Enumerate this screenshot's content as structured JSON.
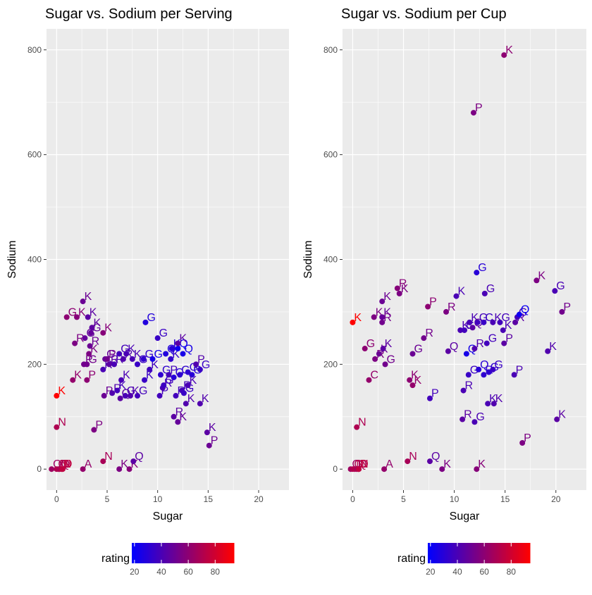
{
  "legend": {
    "title": "rating",
    "ticks": [
      20,
      40,
      60,
      80
    ],
    "low_color": "#0000FF",
    "high_color": "#FF0000",
    "range": [
      18,
      94
    ]
  },
  "chart_data": [
    {
      "type": "scatter",
      "title": "Sugar vs. Sodium per Serving",
      "xlabel": "Sugar",
      "ylabel": "Sodium",
      "xlim": [
        -1,
        23
      ],
      "ylim": [
        -40,
        840
      ],
      "xticks": [
        0,
        5,
        10,
        15,
        20
      ],
      "yticks": [
        0,
        200,
        400,
        600,
        800
      ],
      "grid": true,
      "color_by": "rating",
      "points": [
        {
          "x": 0,
          "y": 140,
          "label": "K",
          "rating": 94
        },
        {
          "x": 0,
          "y": 80,
          "label": "N",
          "rating": 70
        },
        {
          "x": -0.5,
          "y": 0,
          "label": "Q",
          "rating": 65
        },
        {
          "x": 0,
          "y": 0,
          "label": "Q",
          "rating": 70
        },
        {
          "x": 0.2,
          "y": 0,
          "label": "N",
          "rating": 72
        },
        {
          "x": 0.3,
          "y": 0,
          "label": "Q",
          "rating": 68
        },
        {
          "x": 0.5,
          "y": 0,
          "label": "N",
          "rating": 74
        },
        {
          "x": 0.6,
          "y": 0,
          "label": "D",
          "rating": 75
        },
        {
          "x": 1,
          "y": 290,
          "label": "G",
          "rating": 60
        },
        {
          "x": 1.6,
          "y": 170,
          "label": "K",
          "rating": 62
        },
        {
          "x": 2,
          "y": 290,
          "label": "K",
          "rating": 58
        },
        {
          "x": 1.8,
          "y": 240,
          "label": "R",
          "rating": 55
        },
        {
          "x": 2.6,
          "y": 320,
          "label": "K",
          "rating": 50
        },
        {
          "x": 2.7,
          "y": 200,
          "label": "P",
          "rating": 52
        },
        {
          "x": 2.8,
          "y": 250,
          "label": "G",
          "rating": 48
        },
        {
          "x": 3,
          "y": 170,
          "label": "P",
          "rating": 60
        },
        {
          "x": 3,
          "y": 200,
          "label": "G",
          "rating": 52
        },
        {
          "x": 3.1,
          "y": 290,
          "label": "K",
          "rating": 45
        },
        {
          "x": 3.2,
          "y": 220,
          "label": "K",
          "rating": 55
        },
        {
          "x": 3.3,
          "y": 235,
          "label": "R",
          "rating": 50
        },
        {
          "x": 3.4,
          "y": 260,
          "label": "G",
          "rating": 48
        },
        {
          "x": 3.5,
          "y": 270,
          "label": "K",
          "rating": 46
        },
        {
          "x": 2.6,
          "y": 0,
          "label": "A",
          "rating": 62
        },
        {
          "x": 3.7,
          "y": 75,
          "label": "P",
          "rating": 55
        },
        {
          "x": 4.6,
          "y": 260,
          "label": "K",
          "rating": 58
        },
        {
          "x": 4.6,
          "y": 190,
          "label": "R",
          "rating": 40
        },
        {
          "x": 4.8,
          "y": 210,
          "label": "G",
          "rating": 48
        },
        {
          "x": 4.7,
          "y": 140,
          "label": "P",
          "rating": 50
        },
        {
          "x": 5,
          "y": 210,
          "label": "P",
          "rating": 52
        },
        {
          "x": 5.2,
          "y": 200,
          "label": "R",
          "rating": 45
        },
        {
          "x": 5.5,
          "y": 145,
          "label": "P",
          "rating": 42
        },
        {
          "x": 5.7,
          "y": 200,
          "label": "R",
          "rating": 40
        },
        {
          "x": 6,
          "y": 150,
          "label": "K",
          "rating": 38
        },
        {
          "x": 4.6,
          "y": 15,
          "label": "N",
          "rating": 68
        },
        {
          "x": 6.2,
          "y": 220,
          "label": "G",
          "rating": 38
        },
        {
          "x": 6.4,
          "y": 170,
          "label": "K",
          "rating": 40
        },
        {
          "x": 6.3,
          "y": 135,
          "label": "Q",
          "rating": 45
        },
        {
          "x": 6.6,
          "y": 210,
          "label": "R",
          "rating": 42
        },
        {
          "x": 6.9,
          "y": 220,
          "label": "K",
          "rating": 40
        },
        {
          "x": 6.8,
          "y": 140,
          "label": "G",
          "rating": 40
        },
        {
          "x": 7.3,
          "y": 140,
          "label": "K",
          "rating": 42
        },
        {
          "x": 6.2,
          "y": 0,
          "label": "K",
          "rating": 55
        },
        {
          "x": 7.2,
          "y": 0,
          "label": "K",
          "rating": 58
        },
        {
          "x": 7.6,
          "y": 15,
          "label": "Q",
          "rating": 45
        },
        {
          "x": 7.5,
          "y": 210,
          "label": "K",
          "rating": 40
        },
        {
          "x": 8,
          "y": 200,
          "label": "G",
          "rating": 35
        },
        {
          "x": 8,
          "y": 140,
          "label": "G",
          "rating": 38
        },
        {
          "x": 8.6,
          "y": 210,
          "label": "G",
          "rating": 33
        },
        {
          "x": 8.8,
          "y": 280,
          "label": "G",
          "rating": 28
        },
        {
          "x": 8.7,
          "y": 170,
          "label": "K",
          "rating": 35
        },
        {
          "x": 9.2,
          "y": 190,
          "label": "K",
          "rating": 37
        },
        {
          "x": 9.5,
          "y": 210,
          "label": "G",
          "rating": 25
        },
        {
          "x": 10,
          "y": 250,
          "label": "G",
          "rating": 35
        },
        {
          "x": 10.2,
          "y": 140,
          "label": "P",
          "rating": 38
        },
        {
          "x": 10.3,
          "y": 180,
          "label": "G",
          "rating": 32
        },
        {
          "x": 10.5,
          "y": 155,
          "label": "R",
          "rating": 40
        },
        {
          "x": 10.6,
          "y": 160,
          "label": "G",
          "rating": 36
        },
        {
          "x": 10.8,
          "y": 220,
          "label": "Q",
          "rating": 28
        },
        {
          "x": 11.1,
          "y": 180,
          "label": "P",
          "rating": 38
        },
        {
          "x": 11.3,
          "y": 210,
          "label": "K",
          "rating": 33
        },
        {
          "x": 11.4,
          "y": 230,
          "label": "K",
          "rating": 30
        },
        {
          "x": 11.6,
          "y": 175,
          "label": "G",
          "rating": 30
        },
        {
          "x": 11.8,
          "y": 140,
          "label": "R",
          "rating": 38
        },
        {
          "x": 12,
          "y": 230,
          "label": "Q",
          "rating": 22
        },
        {
          "x": 12,
          "y": 240,
          "label": "K",
          "rating": 45
        },
        {
          "x": 12.2,
          "y": 180,
          "label": "G",
          "rating": 32
        },
        {
          "x": 12.4,
          "y": 150,
          "label": "R",
          "rating": 38
        },
        {
          "x": 12.6,
          "y": 145,
          "label": "G",
          "rating": 35
        },
        {
          "x": 12.8,
          "y": 125,
          "label": "K",
          "rating": 42
        },
        {
          "x": 12.5,
          "y": 220,
          "label": "Q",
          "rating": 25
        },
        {
          "x": 13,
          "y": 185,
          "label": "G",
          "rating": 32
        },
        {
          "x": 13.4,
          "y": 180,
          "label": "G",
          "rating": 30
        },
        {
          "x": 13,
          "y": 160,
          "label": "K",
          "rating": 40
        },
        {
          "x": 11.6,
          "y": 100,
          "label": "R",
          "rating": 45
        },
        {
          "x": 12,
          "y": 90,
          "label": "K",
          "rating": 48
        },
        {
          "x": 13.8,
          "y": 200,
          "label": "P",
          "rating": 42
        },
        {
          "x": 14.2,
          "y": 190,
          "label": "G",
          "rating": 35
        },
        {
          "x": 14.2,
          "y": 125,
          "label": "K",
          "rating": 42
        },
        {
          "x": 14.9,
          "y": 70,
          "label": "K",
          "rating": 45
        },
        {
          "x": 15.1,
          "y": 45,
          "label": "P",
          "rating": 50
        }
      ]
    },
    {
      "type": "scatter",
      "title": "Sugar vs. Sodium per Cup",
      "xlabel": "Sugar",
      "ylabel": "Sodium",
      "xlim": [
        -1,
        23
      ],
      "ylim": [
        -40,
        840
      ],
      "xticks": [
        0,
        5,
        10,
        15,
        20
      ],
      "yticks": [
        0,
        200,
        400,
        600,
        800
      ],
      "grid": true,
      "color_by": "rating",
      "points": [
        {
          "x": 0,
          "y": 280,
          "label": "K",
          "rating": 94
        },
        {
          "x": 0.4,
          "y": 80,
          "label": "N",
          "rating": 70
        },
        {
          "x": -0.2,
          "y": 0,
          "label": "Q",
          "rating": 65
        },
        {
          "x": 0,
          "y": 0,
          "label": "Q",
          "rating": 70
        },
        {
          "x": 0.2,
          "y": 0,
          "label": "N",
          "rating": 72
        },
        {
          "x": 0.4,
          "y": 0,
          "label": "Q",
          "rating": 68
        },
        {
          "x": 0.6,
          "y": 0,
          "label": "N",
          "rating": 74
        },
        {
          "x": 0.6,
          "y": 0,
          "label": "D",
          "rating": 75
        },
        {
          "x": 1.2,
          "y": 230,
          "label": "G",
          "rating": 60
        },
        {
          "x": 1.6,
          "y": 170,
          "label": "C",
          "rating": 62
        },
        {
          "x": 2.1,
          "y": 290,
          "label": "K",
          "rating": 55
        },
        {
          "x": 2.2,
          "y": 210,
          "label": "R",
          "rating": 55
        },
        {
          "x": 2.9,
          "y": 320,
          "label": "K",
          "rating": 50
        },
        {
          "x": 2.9,
          "y": 290,
          "label": "K",
          "rating": 48
        },
        {
          "x": 2.9,
          "y": 280,
          "label": "R",
          "rating": 52
        },
        {
          "x": 2.6,
          "y": 220,
          "label": "K",
          "rating": 50
        },
        {
          "x": 3,
          "y": 230,
          "label": "K",
          "rating": 45
        },
        {
          "x": 3.2,
          "y": 200,
          "label": "G",
          "rating": 52
        },
        {
          "x": 3.1,
          "y": 0,
          "label": "A",
          "rating": 62
        },
        {
          "x": 4.4,
          "y": 345,
          "label": "R",
          "rating": 58
        },
        {
          "x": 4.6,
          "y": 335,
          "label": "K",
          "rating": 55
        },
        {
          "x": 5.4,
          "y": 15,
          "label": "N",
          "rating": 68
        },
        {
          "x": 5.6,
          "y": 170,
          "label": "K",
          "rating": 60
        },
        {
          "x": 5.9,
          "y": 160,
          "label": "K",
          "rating": 62
        },
        {
          "x": 5.9,
          "y": 220,
          "label": "G",
          "rating": 50
        },
        {
          "x": 7,
          "y": 250,
          "label": "R",
          "rating": 52
        },
        {
          "x": 7.4,
          "y": 310,
          "label": "P",
          "rating": 60
        },
        {
          "x": 7.6,
          "y": 135,
          "label": "P",
          "rating": 38
        },
        {
          "x": 7.6,
          "y": 15,
          "label": "Q",
          "rating": 45
        },
        {
          "x": 8.8,
          "y": 0,
          "label": "K",
          "rating": 55
        },
        {
          "x": 9.2,
          "y": 300,
          "label": "R",
          "rating": 55
        },
        {
          "x": 9.4,
          "y": 225,
          "label": "Q",
          "rating": 45
        },
        {
          "x": 10.2,
          "y": 330,
          "label": "K",
          "rating": 40
        },
        {
          "x": 10.6,
          "y": 265,
          "label": "K",
          "rating": 40
        },
        {
          "x": 10.8,
          "y": 95,
          "label": "R",
          "rating": 45
        },
        {
          "x": 10.9,
          "y": 150,
          "label": "R",
          "rating": 40
        },
        {
          "x": 11,
          "y": 265,
          "label": "G",
          "rating": 38
        },
        {
          "x": 11.2,
          "y": 220,
          "label": "Q",
          "rating": 25
        },
        {
          "x": 11.4,
          "y": 180,
          "label": "G",
          "rating": 35
        },
        {
          "x": 11.5,
          "y": 280,
          "label": "K",
          "rating": 40
        },
        {
          "x": 11.8,
          "y": 270,
          "label": "Q",
          "rating": 45
        },
        {
          "x": 12.2,
          "y": 375,
          "label": "G",
          "rating": 30
        },
        {
          "x": 12,
          "y": 230,
          "label": "R",
          "rating": 42
        },
        {
          "x": 12,
          "y": 90,
          "label": "G",
          "rating": 40
        },
        {
          "x": 12.2,
          "y": 0,
          "label": "K",
          "rating": 58
        },
        {
          "x": 12.3,
          "y": 280,
          "label": "G",
          "rating": 38
        },
        {
          "x": 12.4,
          "y": 190,
          "label": "Q",
          "rating": 30
        },
        {
          "x": 12.9,
          "y": 180,
          "label": "R",
          "rating": 32
        },
        {
          "x": 12.9,
          "y": 280,
          "label": "C",
          "rating": 35
        },
        {
          "x": 13,
          "y": 335,
          "label": "G",
          "rating": 40
        },
        {
          "x": 13.2,
          "y": 240,
          "label": "G",
          "rating": 38
        },
        {
          "x": 13.3,
          "y": 125,
          "label": "K",
          "rating": 40
        },
        {
          "x": 13.4,
          "y": 185,
          "label": "G",
          "rating": 32
        },
        {
          "x": 13.8,
          "y": 190,
          "label": "G",
          "rating": 35
        },
        {
          "x": 13.8,
          "y": 280,
          "label": "K",
          "rating": 40
        },
        {
          "x": 13.9,
          "y": 125,
          "label": "K",
          "rating": 42
        },
        {
          "x": 14.5,
          "y": 280,
          "label": "G",
          "rating": 38
        },
        {
          "x": 14.9,
          "y": 240,
          "label": "P",
          "rating": 45
        },
        {
          "x": 14.9,
          "y": 790,
          "label": "K",
          "rating": 60
        },
        {
          "x": 14.8,
          "y": 265,
          "label": "K",
          "rating": 40
        },
        {
          "x": 11.9,
          "y": 680,
          "label": "P",
          "rating": 55
        },
        {
          "x": 15.9,
          "y": 180,
          "label": "P",
          "rating": 40
        },
        {
          "x": 16,
          "y": 280,
          "label": "R",
          "rating": 45
        },
        {
          "x": 16.2,
          "y": 290,
          "label": "G",
          "rating": 38
        },
        {
          "x": 16.4,
          "y": 295,
          "label": "Q",
          "rating": 22
        },
        {
          "x": 16.7,
          "y": 50,
          "label": "P",
          "rating": 55
        },
        {
          "x": 18.1,
          "y": 360,
          "label": "K",
          "rating": 55
        },
        {
          "x": 19.2,
          "y": 225,
          "label": "K",
          "rating": 42
        },
        {
          "x": 19.9,
          "y": 340,
          "label": "G",
          "rating": 40
        },
        {
          "x": 20.1,
          "y": 95,
          "label": "K",
          "rating": 45
        },
        {
          "x": 20.6,
          "y": 300,
          "label": "P",
          "rating": 52
        }
      ]
    }
  ]
}
